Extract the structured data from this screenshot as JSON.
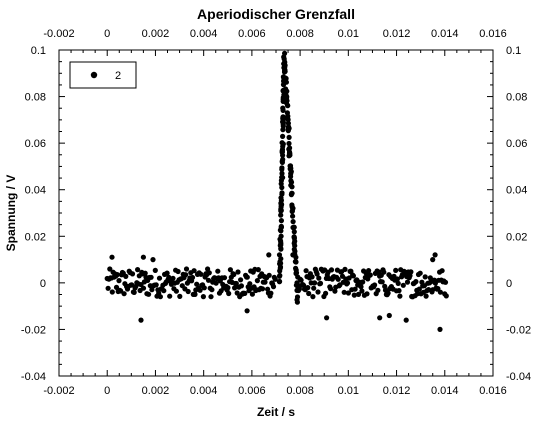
{
  "chart_data": {
    "type": "scatter",
    "title": "Aperiodischer Grenzfall",
    "xlabel": "Zeit / s",
    "ylabel": "Spannung / V",
    "xlim": [
      -0.002,
      0.016
    ],
    "ylim": [
      -0.04,
      0.1
    ],
    "x_ticks": [
      -0.002,
      0,
      0.002,
      0.004,
      0.006,
      0.008,
      0.01,
      0.012,
      0.014,
      0.016
    ],
    "x_tick_labels": [
      "-0.002",
      "0",
      "0.002",
      "0.004",
      "0.006",
      "0.008",
      "0.01",
      "0.012",
      "0.014",
      "0.016"
    ],
    "y_ticks": [
      -0.04,
      -0.02,
      0,
      0.02,
      0.04,
      0.06,
      0.08,
      0.1
    ],
    "y_tick_labels": [
      "-0.04",
      "-0.02",
      "0",
      "0.02",
      "0.04",
      "0.06",
      "0.08",
      "0.1"
    ],
    "legend": {
      "position": "top-left",
      "label": "2"
    },
    "grid": false,
    "mirror_axes": true,
    "marker_color": "#000000",
    "series": [
      {
        "name": "2",
        "segments": [
          {
            "x": [
              0.0,
              0.007
            ],
            "y_center": 0.0,
            "noise": 0.006
          },
          {
            "x": [
              0.00715,
              0.00735
            ],
            "y": [
              0.0,
              0.097
            ],
            "width": 0.012
          },
          {
            "x": [
              0.00735,
              0.0079
            ],
            "y": [
              0.097,
              -0.008
            ],
            "width": 0.008
          },
          {
            "x": [
              0.0079,
              0.0141
            ],
            "y_center": 0.0,
            "noise": 0.006
          }
        ],
        "outliers": [
          [
            0.0002,
            0.011
          ],
          [
            0.0014,
            -0.016
          ],
          [
            0.0015,
            0.011
          ],
          [
            0.0019,
            0.01
          ],
          [
            0.0058,
            -0.012
          ],
          [
            0.0067,
            0.012
          ],
          [
            0.0077,
            0.012
          ],
          [
            0.0091,
            -0.015
          ],
          [
            0.0113,
            -0.015
          ],
          [
            0.0117,
            -0.014
          ],
          [
            0.0124,
            -0.016
          ],
          [
            0.0135,
            0.01
          ],
          [
            0.0138,
            -0.02
          ],
          [
            0.0136,
            0.012
          ]
        ],
        "peak": {
          "x": 0.00732,
          "y": 0.097
        }
      }
    ]
  }
}
